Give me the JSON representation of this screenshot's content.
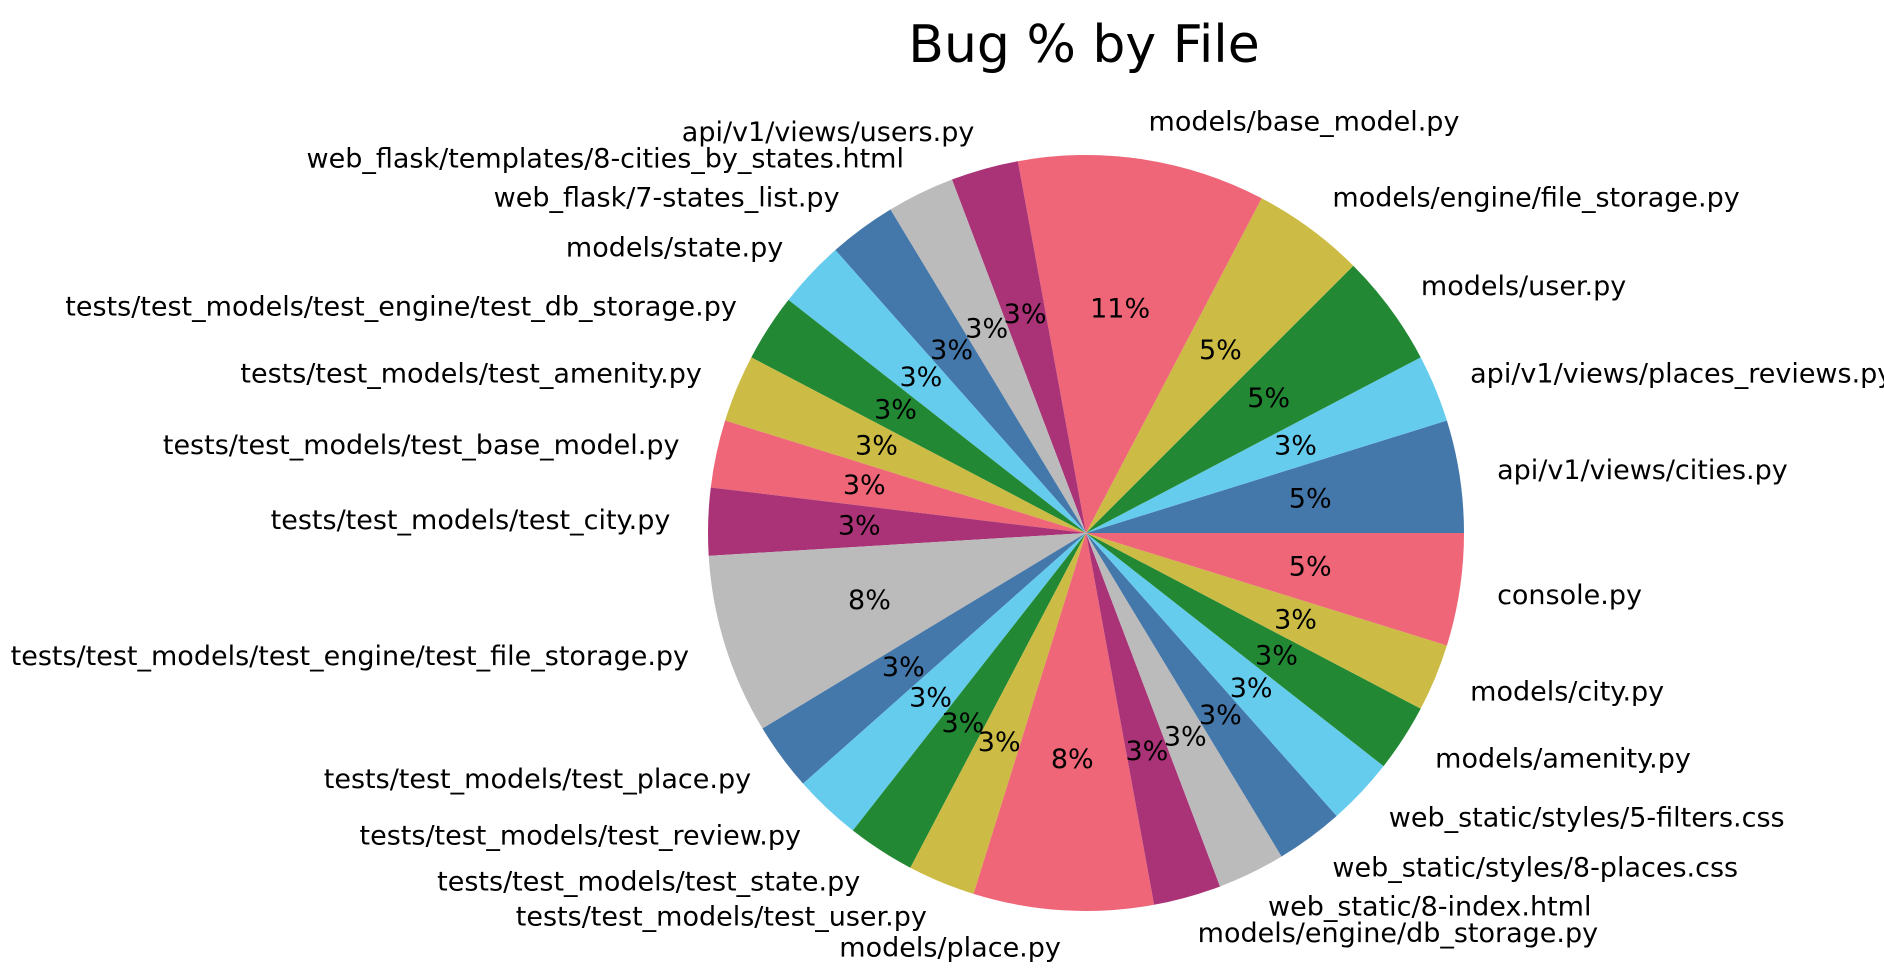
{
  "chart_data": {
    "type": "pie",
    "title": "Bug % by File",
    "colors": [
      "#4477aa",
      "#66ccee",
      "#228833",
      "#ccbb44",
      "#ee6677",
      "#aa3377",
      "#bbbbbb"
    ],
    "slices": [
      {
        "label": "api/v1/views/cities.py",
        "value": 5,
        "pct_label": "5%",
        "color": "#4477aa"
      },
      {
        "label": "api/v1/views/places_reviews.py",
        "value": 3,
        "pct_label": "3%",
        "color": "#66ccee"
      },
      {
        "label": "models/user.py",
        "value": 5,
        "pct_label": "5%",
        "color": "#228833"
      },
      {
        "label": "models/engine/file_storage.py",
        "value": 5,
        "pct_label": "5%",
        "color": "#ccbb44"
      },
      {
        "label": "models/base_model.py",
        "value": 11,
        "pct_label": "11%",
        "color": "#ee6677"
      },
      {
        "label": "api/v1/views/users.py",
        "value": 3,
        "pct_label": "3%",
        "color": "#aa3377"
      },
      {
        "label": "web_flask/templates/8-cities_by_states.html",
        "value": 3,
        "pct_label": "3%",
        "color": "#bbbbbb"
      },
      {
        "label": "web_flask/7-states_list.py",
        "value": 3,
        "pct_label": "3%",
        "color": "#4477aa"
      },
      {
        "label": "models/state.py",
        "value": 3,
        "pct_label": "3%",
        "color": "#66ccee"
      },
      {
        "label": "tests/test_models/test_engine/test_db_storage.py",
        "value": 3,
        "pct_label": "3%",
        "color": "#228833"
      },
      {
        "label": "tests/test_models/test_amenity.py",
        "value": 3,
        "pct_label": "3%",
        "color": "#ccbb44"
      },
      {
        "label": "tests/test_models/test_base_model.py",
        "value": 3,
        "pct_label": "3%",
        "color": "#ee6677"
      },
      {
        "label": "tests/test_models/test_city.py",
        "value": 3,
        "pct_label": "3%",
        "color": "#aa3377"
      },
      {
        "label": "tests/test_models/test_engine/test_file_storage.py",
        "value": 8,
        "pct_label": "8%",
        "color": "#bbbbbb"
      },
      {
        "label": "tests/test_models/test_place.py",
        "value": 3,
        "pct_label": "3%",
        "color": "#4477aa"
      },
      {
        "label": "tests/test_models/test_review.py",
        "value": 3,
        "pct_label": "3%",
        "color": "#66ccee"
      },
      {
        "label": "tests/test_models/test_state.py",
        "value": 3,
        "pct_label": "3%",
        "color": "#228833"
      },
      {
        "label": "tests/test_models/test_user.py",
        "value": 3,
        "pct_label": "3%",
        "color": "#ccbb44"
      },
      {
        "label": "models/place.py",
        "value": 8,
        "pct_label": "8%",
        "color": "#ee6677"
      },
      {
        "label": "models/engine/db_storage.py",
        "value": 3,
        "pct_label": "3%",
        "color": "#aa3377"
      },
      {
        "label": "web_static/8-index.html",
        "value": 3,
        "pct_label": "3%",
        "color": "#bbbbbb"
      },
      {
        "label": "web_static/styles/8-places.css",
        "value": 3,
        "pct_label": "3%",
        "color": "#4477aa"
      },
      {
        "label": "web_static/styles/5-filters.css",
        "value": 3,
        "pct_label": "3%",
        "color": "#66ccee"
      },
      {
        "label": "models/amenity.py",
        "value": 3,
        "pct_label": "3%",
        "color": "#228833"
      },
      {
        "label": "models/city.py",
        "value": 3,
        "pct_label": "3%",
        "color": "#ccbb44"
      },
      {
        "label": "console.py",
        "value": 5,
        "pct_label": "5%",
        "color": "#ee6677"
      }
    ]
  }
}
